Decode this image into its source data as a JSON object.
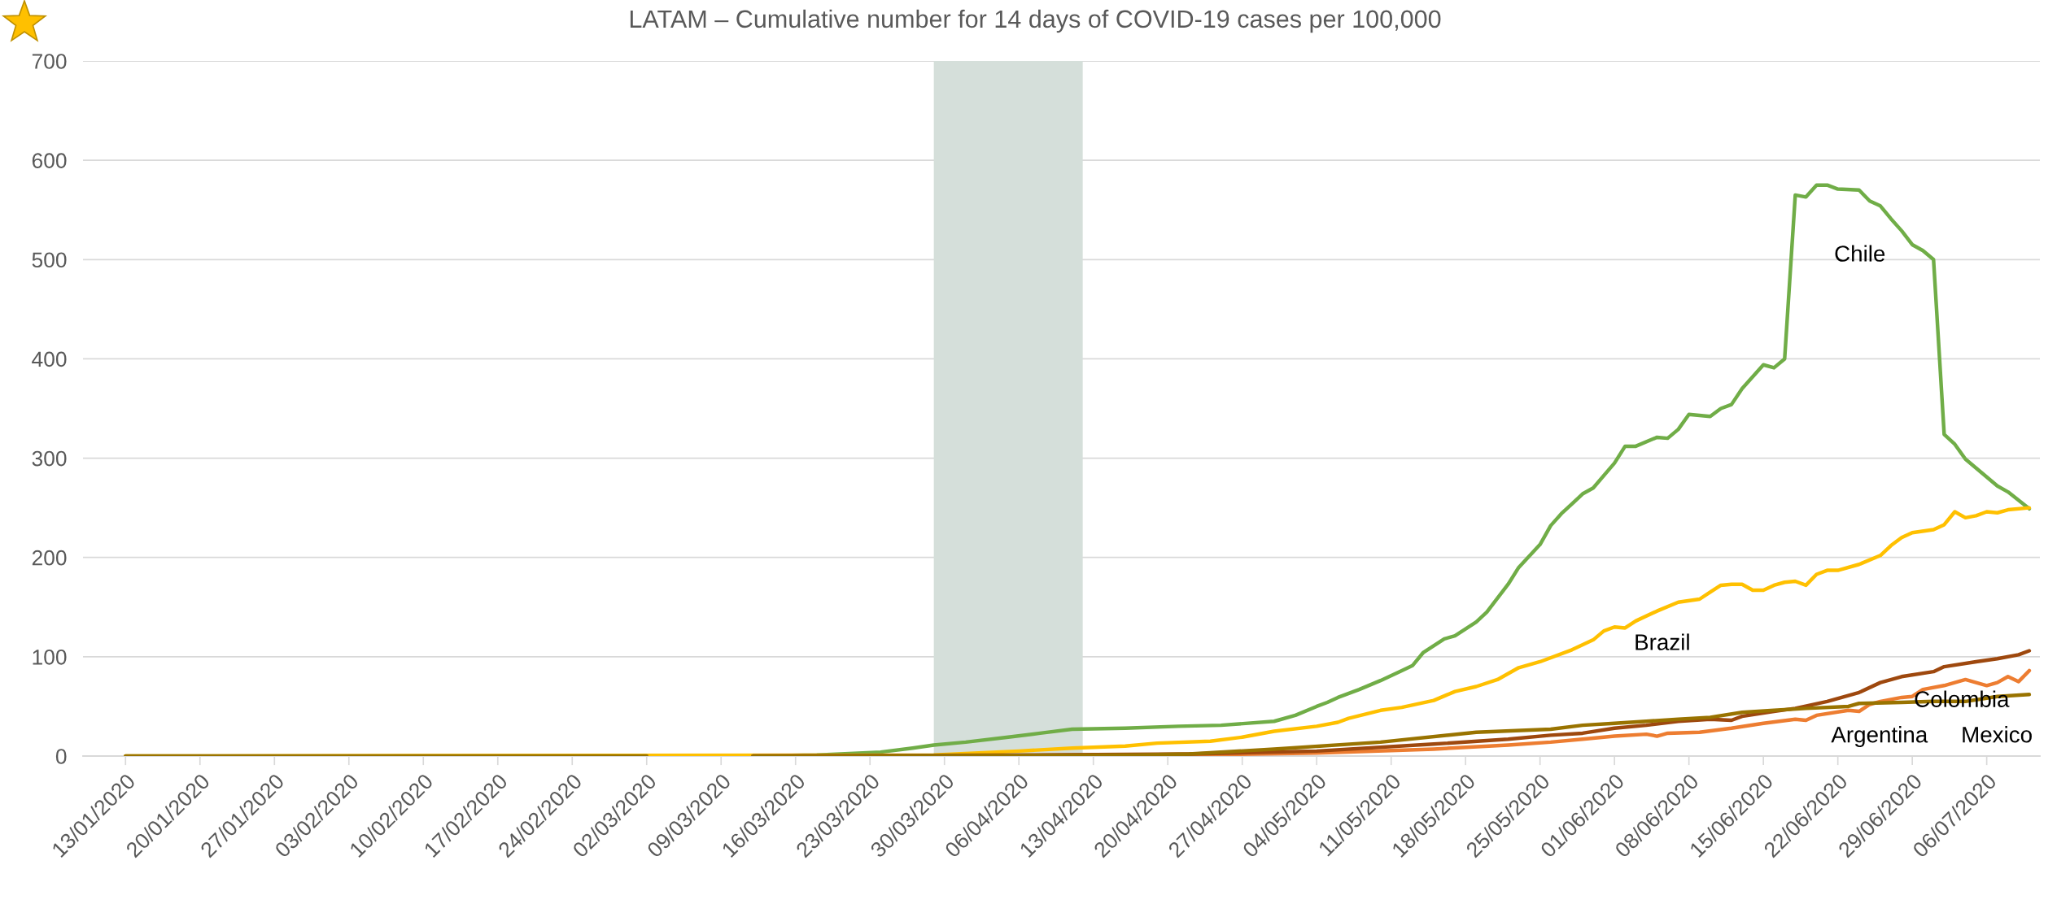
{
  "chart_data": {
    "type": "line",
    "title": "LATAM – Cumulative number for 14 days of COVID-19 cases per 100,000",
    "series": [
      {
        "color": "#70ad47",
        "x": [
          "2020-03-12",
          "2020-03-18",
          "2020-03-24",
          "2020-03-27",
          "2020-03-29",
          "2020-04-01",
          "2020-04-05",
          "2020-04-08",
          "2020-04-11",
          "2020-04-16",
          "2020-04-21",
          "2020-04-25",
          "2020-04-30",
          "2020-05-02",
          "2020-05-04",
          "2020-05-05",
          "2020-05-06",
          "2020-05-08",
          "2020-05-10",
          "2020-05-12",
          "2020-05-13",
          "2020-05-14",
          "2020-05-16",
          "2020-05-17",
          "2020-05-19",
          "2020-05-20",
          "2020-05-22",
          "2020-05-23",
          "2020-05-25",
          "2020-05-26",
          "2020-05-27",
          "2020-05-28",
          "2020-05-29",
          "2020-05-30",
          "2020-06-01",
          "2020-06-02",
          "2020-06-03",
          "2020-06-05",
          "2020-06-06",
          "2020-06-07",
          "2020-06-08",
          "2020-06-10",
          "2020-06-11",
          "2020-06-12",
          "2020-06-13",
          "2020-06-15",
          "2020-06-16",
          "2020-06-17",
          "2020-06-18",
          "2020-06-19",
          "2020-06-20",
          "2020-06-21",
          "2020-06-22",
          "2020-06-24",
          "2020-06-25",
          "2020-06-26",
          "2020-06-27",
          "2020-06-28",
          "2020-06-29",
          "2020-06-30",
          "2020-07-01",
          "2020-07-02",
          "2020-07-03",
          "2020-07-04",
          "2020-07-05",
          "2020-07-06",
          "2020-07-07",
          "2020-07-08",
          "2020-07-10"
        ],
        "values": [
          0,
          1,
          4,
          8,
          11,
          14,
          19,
          23,
          27,
          28,
          30,
          31,
          35,
          41,
          50,
          54,
          59,
          67,
          76,
          86,
          91,
          104,
          118,
          121,
          135,
          145,
          173,
          190,
          213,
          232,
          244,
          254,
          264,
          270,
          295,
          312,
          312,
          321,
          320,
          329,
          344,
          342,
          350,
          354,
          370,
          394,
          391,
          400,
          565,
          563,
          575,
          575,
          571,
          570,
          559,
          554,
          541,
          529,
          515,
          509,
          500,
          324,
          314,
          299,
          290,
          281,
          272,
          266,
          249
        ]
      },
      {
        "color": "#ffc000",
        "x": [
          "2020-01-13",
          "2020-03-29",
          "2020-04-06",
          "2020-04-11",
          "2020-04-16",
          "2020-04-19",
          "2020-04-24",
          "2020-04-27",
          "2020-04-30",
          "2020-05-04",
          "2020-05-06",
          "2020-05-07",
          "2020-05-10",
          "2020-05-12",
          "2020-05-15",
          "2020-05-17",
          "2020-05-19",
          "2020-05-21",
          "2020-05-23",
          "2020-05-25",
          "2020-05-28",
          "2020-05-30",
          "2020-05-31",
          "2020-06-01",
          "2020-06-02",
          "2020-06-03",
          "2020-06-05",
          "2020-06-07",
          "2020-06-09",
          "2020-06-10",
          "2020-06-11",
          "2020-06-12",
          "2020-06-13",
          "2020-06-14",
          "2020-06-15",
          "2020-06-16",
          "2020-06-17",
          "2020-06-18",
          "2020-06-19",
          "2020-06-20",
          "2020-06-21",
          "2020-06-22",
          "2020-06-24",
          "2020-06-26",
          "2020-06-27",
          "2020-06-28",
          "2020-06-29",
          "2020-07-01",
          "2020-07-02",
          "2020-07-03",
          "2020-07-04",
          "2020-07-05",
          "2020-07-06",
          "2020-07-07",
          "2020-07-08",
          "2020-07-10"
        ],
        "values": [
          0,
          1,
          5,
          8,
          10,
          13,
          15,
          19,
          25,
          30,
          34,
          38,
          46,
          49,
          56,
          65,
          70,
          77,
          89,
          95,
          107,
          117,
          126,
          130,
          129,
          136,
          146,
          155,
          158,
          165,
          172,
          173,
          173,
          167,
          167,
          172,
          175,
          176,
          172,
          183,
          187,
          187,
          193,
          202,
          212,
          220,
          225,
          228,
          233,
          246,
          240,
          242,
          246,
          245,
          248,
          250
        ]
      },
      {
        "color": "#ed7d31",
        "x": [
          "2020-03-12",
          "2020-04-22",
          "2020-05-04",
          "2020-05-15",
          "2020-05-22",
          "2020-05-26",
          "2020-05-29",
          "2020-06-01",
          "2020-06-04",
          "2020-06-05",
          "2020-06-06",
          "2020-06-09",
          "2020-06-12",
          "2020-06-15",
          "2020-06-18",
          "2020-06-19",
          "2020-06-20",
          "2020-06-23",
          "2020-06-24",
          "2020-06-25",
          "2020-06-26",
          "2020-06-28",
          "2020-06-29",
          "2020-06-30",
          "2020-07-02",
          "2020-07-04",
          "2020-07-06",
          "2020-07-07",
          "2020-07-08",
          "2020-07-09",
          "2020-07-10"
        ],
        "values": [
          0,
          1,
          3,
          7,
          11,
          14,
          17,
          20,
          22,
          20,
          23,
          24,
          28,
          33,
          37,
          36,
          41,
          46,
          45,
          52,
          55,
          59,
          60,
          67,
          71,
          77,
          71,
          74,
          80,
          75,
          86
        ]
      },
      {
        "color": "#9e480e",
        "x": [
          "2020-03-12",
          "2020-04-07",
          "2020-04-22",
          "2020-05-04",
          "2020-05-15",
          "2020-05-22",
          "2020-05-26",
          "2020-05-29",
          "2020-06-01",
          "2020-06-04",
          "2020-06-07",
          "2020-06-10",
          "2020-06-12",
          "2020-06-13",
          "2020-06-16",
          "2020-06-18",
          "2020-06-21",
          "2020-06-24",
          "2020-06-26",
          "2020-06-28",
          "2020-07-01",
          "2020-07-02",
          "2020-07-05",
          "2020-07-07",
          "2020-07-09",
          "2020-07-10"
        ],
        "values": [
          0,
          1,
          2,
          5,
          12,
          17,
          21,
          23,
          28,
          31,
          35,
          37,
          36,
          40,
          45,
          48,
          55,
          64,
          74,
          80,
          85,
          90,
          95,
          98,
          102,
          106
        ]
      },
      {
        "color": "#997300",
        "x": [
          "2020-01-13",
          "2020-03-02",
          "2020-03-07",
          "2020-03-12",
          "2020-04-17",
          "2020-04-22",
          "2020-04-30",
          "2020-05-10",
          "2020-05-19",
          "2020-05-26",
          "2020-05-29",
          "2020-06-01",
          "2020-06-04",
          "2020-06-07",
          "2020-06-10",
          "2020-06-13",
          "2020-06-16",
          "2020-06-19",
          "2020-06-23",
          "2020-06-24",
          "2020-06-28",
          "2020-07-01",
          "2020-07-04",
          "2020-07-07",
          "2020-07-10"
        ],
        "values": [
          0,
          0,
          null,
          0,
          1,
          2,
          7,
          14,
          24,
          27,
          31,
          33,
          35,
          37,
          39,
          44,
          46,
          48,
          50,
          53,
          54,
          55,
          55,
          60,
          62
        ]
      }
    ],
    "annotations": [
      "Chile",
      "Brazil",
      "Colombia",
      "Argentina",
      "Mexico"
    ],
    "bands": [
      {
        "axis": "x",
        "from": "2020-03-29",
        "to": "2020-04-12",
        "color": "#d5dfda"
      }
    ],
    "xlim": [
      "2020-01-09",
      "2020-07-11"
    ],
    "xticks": [
      {
        "value": "2020-01-13",
        "label": "13/01/2020"
      },
      {
        "value": "2020-01-20",
        "label": "20/01/2020"
      },
      {
        "value": "2020-01-27",
        "label": "27/01/2020"
      },
      {
        "value": "2020-02-03",
        "label": "03/02/2020"
      },
      {
        "value": "2020-02-10",
        "label": "10/02/2020"
      },
      {
        "value": "2020-02-17",
        "label": "17/02/2020"
      },
      {
        "value": "2020-02-24",
        "label": "24/02/2020"
      },
      {
        "value": "2020-03-02",
        "label": "02/03/2020"
      },
      {
        "value": "2020-03-09",
        "label": "09/03/2020"
      },
      {
        "value": "2020-03-16",
        "label": "16/03/2020"
      },
      {
        "value": "2020-03-23",
        "label": "23/03/2020"
      },
      {
        "value": "2020-03-30",
        "label": "30/03/2020"
      },
      {
        "value": "2020-04-06",
        "label": "06/04/2020"
      },
      {
        "value": "2020-04-13",
        "label": "13/04/2020"
      },
      {
        "value": "2020-04-20",
        "label": "20/04/2020"
      },
      {
        "value": "2020-04-27",
        "label": "27/04/2020"
      },
      {
        "value": "2020-05-04",
        "label": "04/05/2020"
      },
      {
        "value": "2020-05-11",
        "label": "11/05/2020"
      },
      {
        "value": "2020-05-18",
        "label": "18/05/2020"
      },
      {
        "value": "2020-05-25",
        "label": "25/05/2020"
      },
      {
        "value": "2020-06-01",
        "label": "01/06/2020"
      },
      {
        "value": "2020-06-08",
        "label": "08/06/2020"
      },
      {
        "value": "2020-06-15",
        "label": "15/06/2020"
      },
      {
        "value": "2020-06-22",
        "label": "22/06/2020"
      },
      {
        "value": "2020-06-29",
        "label": "29/06/2020"
      },
      {
        "value": "2020-07-06",
        "label": "06/07/2020"
      }
    ],
    "ylim": [
      0,
      700
    ],
    "yticks": [
      0,
      100,
      200,
      300,
      400,
      500,
      600,
      700
    ],
    "grid": "y",
    "line_style": "solid",
    "marker": "none"
  }
}
